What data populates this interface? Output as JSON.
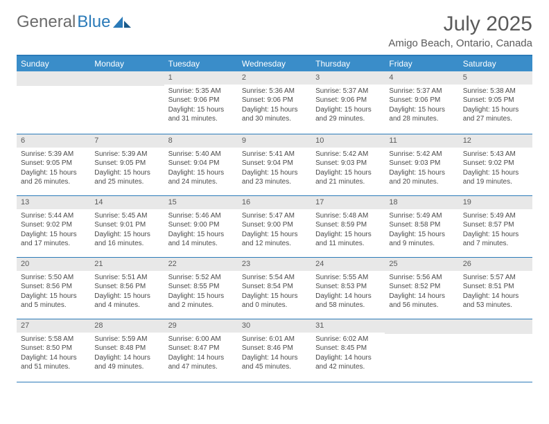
{
  "logo": {
    "text1": "General",
    "text2": "Blue"
  },
  "title": "July 2025",
  "location": "Amigo Beach, Ontario, Canada",
  "colors": {
    "header_bg": "#3a8dc9",
    "border": "#2a7ab8",
    "daynum_bg": "#e8e8e8",
    "text": "#5a5a5a"
  },
  "day_names": [
    "Sunday",
    "Monday",
    "Tuesday",
    "Wednesday",
    "Thursday",
    "Friday",
    "Saturday"
  ],
  "weeks": [
    [
      {
        "empty": true
      },
      {
        "empty": true
      },
      {
        "num": "1",
        "sunrise": "Sunrise: 5:35 AM",
        "sunset": "Sunset: 9:06 PM",
        "daylight": "Daylight: 15 hours and 31 minutes."
      },
      {
        "num": "2",
        "sunrise": "Sunrise: 5:36 AM",
        "sunset": "Sunset: 9:06 PM",
        "daylight": "Daylight: 15 hours and 30 minutes."
      },
      {
        "num": "3",
        "sunrise": "Sunrise: 5:37 AM",
        "sunset": "Sunset: 9:06 PM",
        "daylight": "Daylight: 15 hours and 29 minutes."
      },
      {
        "num": "4",
        "sunrise": "Sunrise: 5:37 AM",
        "sunset": "Sunset: 9:06 PM",
        "daylight": "Daylight: 15 hours and 28 minutes."
      },
      {
        "num": "5",
        "sunrise": "Sunrise: 5:38 AM",
        "sunset": "Sunset: 9:05 PM",
        "daylight": "Daylight: 15 hours and 27 minutes."
      }
    ],
    [
      {
        "num": "6",
        "sunrise": "Sunrise: 5:39 AM",
        "sunset": "Sunset: 9:05 PM",
        "daylight": "Daylight: 15 hours and 26 minutes."
      },
      {
        "num": "7",
        "sunrise": "Sunrise: 5:39 AM",
        "sunset": "Sunset: 9:05 PM",
        "daylight": "Daylight: 15 hours and 25 minutes."
      },
      {
        "num": "8",
        "sunrise": "Sunrise: 5:40 AM",
        "sunset": "Sunset: 9:04 PM",
        "daylight": "Daylight: 15 hours and 24 minutes."
      },
      {
        "num": "9",
        "sunrise": "Sunrise: 5:41 AM",
        "sunset": "Sunset: 9:04 PM",
        "daylight": "Daylight: 15 hours and 23 minutes."
      },
      {
        "num": "10",
        "sunrise": "Sunrise: 5:42 AM",
        "sunset": "Sunset: 9:03 PM",
        "daylight": "Daylight: 15 hours and 21 minutes."
      },
      {
        "num": "11",
        "sunrise": "Sunrise: 5:42 AM",
        "sunset": "Sunset: 9:03 PM",
        "daylight": "Daylight: 15 hours and 20 minutes."
      },
      {
        "num": "12",
        "sunrise": "Sunrise: 5:43 AM",
        "sunset": "Sunset: 9:02 PM",
        "daylight": "Daylight: 15 hours and 19 minutes."
      }
    ],
    [
      {
        "num": "13",
        "sunrise": "Sunrise: 5:44 AM",
        "sunset": "Sunset: 9:02 PM",
        "daylight": "Daylight: 15 hours and 17 minutes."
      },
      {
        "num": "14",
        "sunrise": "Sunrise: 5:45 AM",
        "sunset": "Sunset: 9:01 PM",
        "daylight": "Daylight: 15 hours and 16 minutes."
      },
      {
        "num": "15",
        "sunrise": "Sunrise: 5:46 AM",
        "sunset": "Sunset: 9:00 PM",
        "daylight": "Daylight: 15 hours and 14 minutes."
      },
      {
        "num": "16",
        "sunrise": "Sunrise: 5:47 AM",
        "sunset": "Sunset: 9:00 PM",
        "daylight": "Daylight: 15 hours and 12 minutes."
      },
      {
        "num": "17",
        "sunrise": "Sunrise: 5:48 AM",
        "sunset": "Sunset: 8:59 PM",
        "daylight": "Daylight: 15 hours and 11 minutes."
      },
      {
        "num": "18",
        "sunrise": "Sunrise: 5:49 AM",
        "sunset": "Sunset: 8:58 PM",
        "daylight": "Daylight: 15 hours and 9 minutes."
      },
      {
        "num": "19",
        "sunrise": "Sunrise: 5:49 AM",
        "sunset": "Sunset: 8:57 PM",
        "daylight": "Daylight: 15 hours and 7 minutes."
      }
    ],
    [
      {
        "num": "20",
        "sunrise": "Sunrise: 5:50 AM",
        "sunset": "Sunset: 8:56 PM",
        "daylight": "Daylight: 15 hours and 5 minutes."
      },
      {
        "num": "21",
        "sunrise": "Sunrise: 5:51 AM",
        "sunset": "Sunset: 8:56 PM",
        "daylight": "Daylight: 15 hours and 4 minutes."
      },
      {
        "num": "22",
        "sunrise": "Sunrise: 5:52 AM",
        "sunset": "Sunset: 8:55 PM",
        "daylight": "Daylight: 15 hours and 2 minutes."
      },
      {
        "num": "23",
        "sunrise": "Sunrise: 5:54 AM",
        "sunset": "Sunset: 8:54 PM",
        "daylight": "Daylight: 15 hours and 0 minutes."
      },
      {
        "num": "24",
        "sunrise": "Sunrise: 5:55 AM",
        "sunset": "Sunset: 8:53 PM",
        "daylight": "Daylight: 14 hours and 58 minutes."
      },
      {
        "num": "25",
        "sunrise": "Sunrise: 5:56 AM",
        "sunset": "Sunset: 8:52 PM",
        "daylight": "Daylight: 14 hours and 56 minutes."
      },
      {
        "num": "26",
        "sunrise": "Sunrise: 5:57 AM",
        "sunset": "Sunset: 8:51 PM",
        "daylight": "Daylight: 14 hours and 53 minutes."
      }
    ],
    [
      {
        "num": "27",
        "sunrise": "Sunrise: 5:58 AM",
        "sunset": "Sunset: 8:50 PM",
        "daylight": "Daylight: 14 hours and 51 minutes."
      },
      {
        "num": "28",
        "sunrise": "Sunrise: 5:59 AM",
        "sunset": "Sunset: 8:48 PM",
        "daylight": "Daylight: 14 hours and 49 minutes."
      },
      {
        "num": "29",
        "sunrise": "Sunrise: 6:00 AM",
        "sunset": "Sunset: 8:47 PM",
        "daylight": "Daylight: 14 hours and 47 minutes."
      },
      {
        "num": "30",
        "sunrise": "Sunrise: 6:01 AM",
        "sunset": "Sunset: 8:46 PM",
        "daylight": "Daylight: 14 hours and 45 minutes."
      },
      {
        "num": "31",
        "sunrise": "Sunrise: 6:02 AM",
        "sunset": "Sunset: 8:45 PM",
        "daylight": "Daylight: 14 hours and 42 minutes."
      },
      {
        "empty": true
      },
      {
        "empty": true
      }
    ]
  ]
}
